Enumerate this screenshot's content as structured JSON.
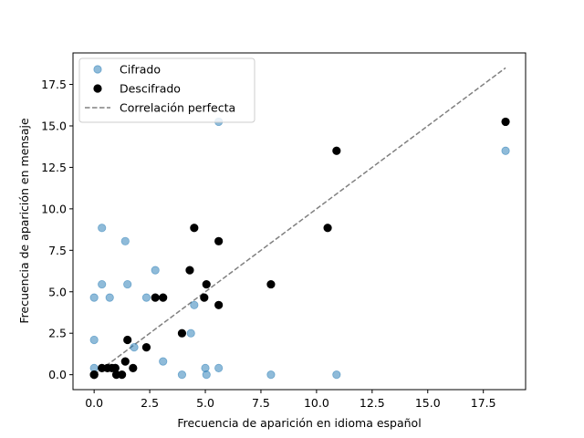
{
  "chart_data": {
    "type": "scatter",
    "title": "",
    "xlabel": "Frecuencia de aparición en idioma español",
    "ylabel": "Frecuencia de aparición en mensaje",
    "xlim": [
      -0.95,
      19.4
    ],
    "ylim": [
      -0.9,
      19.4
    ],
    "xticks": [
      0.0,
      2.5,
      5.0,
      7.5,
      10.0,
      12.5,
      15.0,
      17.5
    ],
    "xtick_labels": [
      "0.0",
      "2.5",
      "5.0",
      "7.5",
      "10.0",
      "12.5",
      "15.0",
      "17.5"
    ],
    "yticks": [
      0.0,
      2.5,
      5.0,
      7.5,
      10.0,
      12.5,
      15.0,
      17.5
    ],
    "ytick_labels": [
      "0.0",
      "2.5",
      "5.0",
      "7.5",
      "10.0",
      "12.5",
      "15.0",
      "17.5"
    ],
    "grid": false,
    "legend": {
      "position": "top-left",
      "entries": [
        "Cifrado",
        "Descifrado",
        "Correlación perfecta"
      ]
    },
    "series": [
      {
        "name": "Cifrado",
        "kind": "scatter",
        "color": "#1f77b4",
        "alpha": 0.5,
        "x": [
          0.0,
          0.0,
          0.0,
          0.35,
          0.35,
          0.7,
          0.95,
          1.4,
          1.5,
          1.8,
          2.35,
          2.75,
          3.1,
          3.95,
          4.35,
          4.5,
          5.0,
          5.05,
          5.6,
          5.6,
          7.95,
          10.9,
          18.5
        ],
        "y": [
          0.4,
          2.1,
          4.65,
          8.85,
          5.45,
          4.65,
          0.4,
          8.05,
          5.45,
          1.65,
          4.65,
          6.3,
          0.8,
          0.0,
          2.5,
          4.2,
          0.4,
          0.0,
          0.4,
          15.25,
          0.0,
          0.0,
          13.5
        ]
      },
      {
        "name": "Descifrado",
        "kind": "scatter",
        "color": "#000000",
        "alpha": 1.0,
        "x": [
          0.0,
          0.0,
          0.35,
          0.6,
          0.8,
          0.95,
          1.0,
          1.25,
          1.4,
          1.5,
          1.75,
          2.35,
          2.75,
          3.1,
          3.95,
          4.3,
          4.5,
          4.95,
          5.05,
          5.6,
          5.6,
          7.95,
          10.5,
          10.9,
          18.5
        ],
        "y": [
          0.0,
          0.0,
          0.4,
          0.4,
          0.4,
          0.4,
          0.0,
          0.0,
          0.8,
          2.1,
          0.4,
          1.65,
          4.65,
          4.65,
          2.5,
          6.3,
          8.85,
          4.65,
          5.45,
          8.05,
          4.2,
          5.45,
          8.85,
          13.5,
          15.25
        ]
      },
      {
        "name": "Correlación perfecta",
        "kind": "line",
        "style": "dashed",
        "color": "#808080",
        "x": [
          0.0,
          18.5
        ],
        "y": [
          0.0,
          18.5
        ]
      }
    ]
  }
}
